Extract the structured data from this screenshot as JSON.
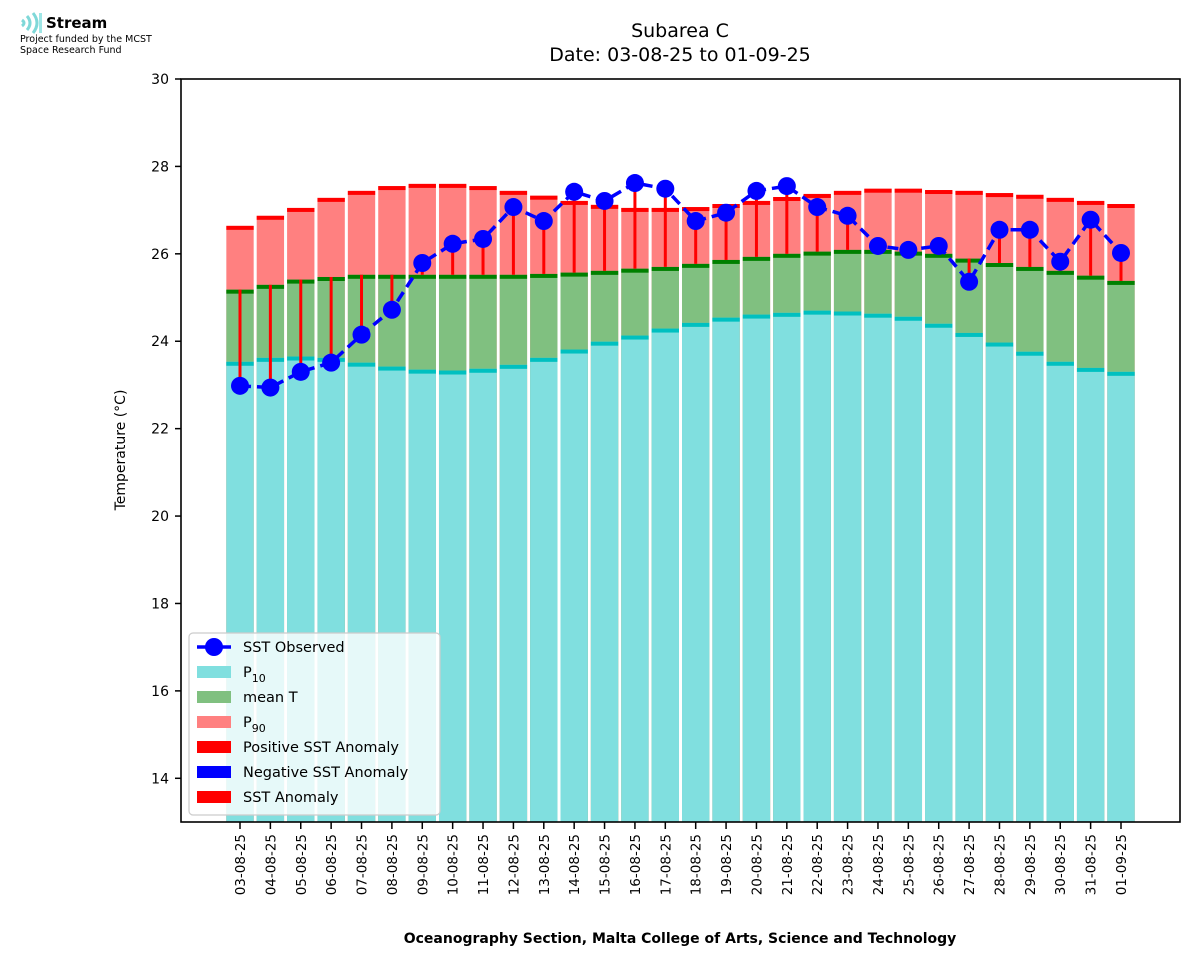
{
  "logo": {
    "brand_name": "Stream",
    "subtitle_line1": "Project funded by the MCST",
    "subtitle_line2": "Space Research Fund",
    "icon": "wave-signal-icon"
  },
  "chart_data": {
    "type": "bar",
    "title_line1": "Subarea C",
    "title_line2": "Date: 03-08-25 to 01-09-25",
    "xlabel": "Oceanography Section, Malta College of Arts, Science and Technology",
    "ylabel": "Temperature (°C)",
    "ylim": [
      13,
      30
    ],
    "yticks": [
      14,
      16,
      18,
      20,
      22,
      24,
      26,
      28,
      30
    ],
    "grid": false,
    "legend_position": "bottom-left",
    "categories": [
      "03-08-25",
      "04-08-25",
      "05-08-25",
      "06-08-25",
      "07-08-25",
      "08-08-25",
      "09-08-25",
      "10-08-25",
      "11-08-25",
      "12-08-25",
      "13-08-25",
      "14-08-25",
      "15-08-25",
      "16-08-25",
      "17-08-25",
      "18-08-25",
      "19-08-25",
      "20-08-25",
      "21-08-25",
      "22-08-25",
      "23-08-25",
      "24-08-25",
      "25-08-25",
      "26-08-25",
      "27-08-25",
      "28-08-25",
      "29-08-25",
      "30-08-25",
      "31-08-25",
      "01-09-25"
    ],
    "series": [
      {
        "name": "P10",
        "type": "bar",
        "color": "#80dfdf",
        "edge_color": "#00c0c0",
        "values": [
          23.53,
          23.62,
          23.65,
          23.62,
          23.51,
          23.42,
          23.35,
          23.33,
          23.37,
          23.46,
          23.62,
          23.81,
          23.99,
          24.13,
          24.29,
          24.42,
          24.54,
          24.61,
          24.65,
          24.7,
          24.68,
          24.63,
          24.56,
          24.4,
          24.19,
          23.97,
          23.76,
          23.53,
          23.39,
          23.3
        ]
      },
      {
        "name": "mean T",
        "type": "bar",
        "color": "#80c080",
        "edge_color": "#008000",
        "values": [
          25.18,
          25.29,
          25.41,
          25.47,
          25.52,
          25.52,
          25.52,
          25.52,
          25.52,
          25.52,
          25.54,
          25.57,
          25.61,
          25.66,
          25.7,
          25.77,
          25.86,
          25.93,
          26.0,
          26.05,
          26.09,
          26.09,
          26.05,
          26.0,
          25.89,
          25.79,
          25.7,
          25.61,
          25.5,
          25.38
        ]
      },
      {
        "name": "P90",
        "type": "bar",
        "color": "#ff8080",
        "edge_color": "#ff0000",
        "values": [
          26.64,
          26.87,
          27.05,
          27.28,
          27.44,
          27.55,
          27.6,
          27.6,
          27.55,
          27.44,
          27.33,
          27.21,
          27.12,
          27.05,
          27.05,
          27.07,
          27.14,
          27.21,
          27.3,
          27.37,
          27.44,
          27.49,
          27.49,
          27.46,
          27.44,
          27.39,
          27.35,
          27.28,
          27.21,
          27.14
        ]
      },
      {
        "name": "SST Observed",
        "type": "line",
        "color": "#0000ff",
        "line_style": "dashed",
        "marker": "circle",
        "values": [
          22.98,
          22.94,
          23.3,
          23.51,
          24.15,
          24.72,
          25.79,
          26.23,
          26.34,
          27.07,
          26.75,
          27.42,
          27.21,
          27.62,
          27.49,
          26.75,
          26.94,
          27.44,
          27.55,
          27.07,
          26.87,
          26.18,
          26.09,
          26.18,
          25.36,
          26.55,
          26.55,
          25.82,
          26.78,
          26.02
        ]
      }
    ],
    "anomaly_color": "#ff0000",
    "legend": [
      {
        "label": "SST Observed",
        "kind": "line",
        "color": "#0000ff"
      },
      {
        "label": "P",
        "sub": "10",
        "kind": "patch",
        "color": "#80dfdf"
      },
      {
        "label": "mean T",
        "kind": "patch",
        "color": "#80c080"
      },
      {
        "label": "P",
        "sub": "90",
        "kind": "patch",
        "color": "#ff8080"
      },
      {
        "label": "Positive SST Anomaly",
        "kind": "patch",
        "color": "#ff0000"
      },
      {
        "label": "Negative SST Anomaly",
        "kind": "patch",
        "color": "#0000ff"
      },
      {
        "label": "SST Anomaly",
        "kind": "patch",
        "color": "#ff0000"
      }
    ]
  }
}
